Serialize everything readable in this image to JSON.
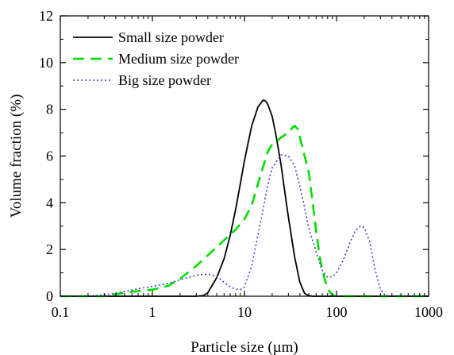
{
  "chart_data": {
    "type": "line",
    "title": "",
    "xlabel": "Particle size (µm)",
    "ylabel": "Volume fraction (%)",
    "xscale": "log",
    "xlim": [
      0.1,
      1000
    ],
    "ylim": [
      0,
      12
    ],
    "xticks": [
      0.1,
      1,
      10,
      100,
      1000
    ],
    "xtick_labels": [
      "0.1",
      "1",
      "10",
      "100",
      "1000"
    ],
    "yticks": [
      0,
      2,
      4,
      6,
      8,
      10,
      12
    ],
    "ytick_labels": [
      "0",
      "2",
      "4",
      "6",
      "8",
      "10",
      "12"
    ],
    "grid": false,
    "legend_position": "top-left",
    "series": [
      {
        "name": "Small size powder",
        "color": "#000000",
        "style": "solid",
        "x": [
          0.1,
          0.5,
          1,
          2,
          3,
          3.6,
          4,
          5,
          6,
          7,
          8,
          9,
          10,
          11,
          12,
          14,
          16,
          17,
          18,
          20,
          22,
          25,
          28,
          30,
          35,
          40,
          45,
          50,
          55,
          60,
          1000
        ],
        "y": [
          0,
          0,
          0,
          0,
          0,
          0.03,
          0.15,
          0.8,
          1.6,
          2.6,
          3.7,
          4.8,
          5.8,
          6.6,
          7.3,
          8.1,
          8.4,
          8.35,
          8.2,
          7.7,
          6.9,
          5.6,
          4.2,
          3.4,
          1.7,
          0.6,
          0.12,
          0.02,
          0,
          0,
          0
        ]
      },
      {
        "name": "Medium size powder",
        "color": "#00e000",
        "style": "dashed",
        "x": [
          0.1,
          0.3,
          0.4,
          0.5,
          0.7,
          1,
          1.5,
          2,
          3,
          4,
          5,
          6,
          8,
          10,
          12,
          15,
          18,
          20,
          22,
          25,
          30,
          33,
          35,
          38,
          40,
          45,
          50,
          55,
          60,
          65,
          70,
          80,
          90,
          100,
          1000
        ],
        "y": [
          0,
          0,
          0.08,
          0.15,
          0.22,
          0.28,
          0.45,
          0.75,
          1.3,
          1.75,
          2.1,
          2.4,
          2.85,
          3.3,
          3.9,
          5.2,
          6.2,
          6.5,
          6.6,
          6.8,
          7.0,
          7.2,
          7.3,
          7.15,
          6.8,
          6.0,
          5.3,
          4.0,
          2.8,
          1.8,
          1.1,
          0.3,
          0.05,
          0,
          0
        ]
      },
      {
        "name": "Big size powder",
        "color": "#3b3bd8",
        "style": "dotted",
        "x": [
          0.1,
          0.2,
          0.3,
          0.5,
          0.7,
          1,
          1.5,
          2,
          3,
          4,
          5,
          6,
          7,
          8,
          9,
          10,
          12,
          15,
          18,
          20,
          25,
          30,
          35,
          40,
          45,
          50,
          60,
          70,
          80,
          90,
          100,
          120,
          140,
          160,
          180,
          200,
          230,
          260,
          300,
          340,
          1000
        ],
        "y": [
          0,
          0,
          0.05,
          0.2,
          0.32,
          0.42,
          0.55,
          0.7,
          0.9,
          0.95,
          0.85,
          0.6,
          0.4,
          0.3,
          0.28,
          0.4,
          1.3,
          3.2,
          4.8,
          5.5,
          6.05,
          6.0,
          5.6,
          4.7,
          3.8,
          2.9,
          1.9,
          1.1,
          0.8,
          0.85,
          1.0,
          1.6,
          2.3,
          2.8,
          3.0,
          2.95,
          2.3,
          1.2,
          0.3,
          0.02,
          0
        ]
      }
    ]
  }
}
